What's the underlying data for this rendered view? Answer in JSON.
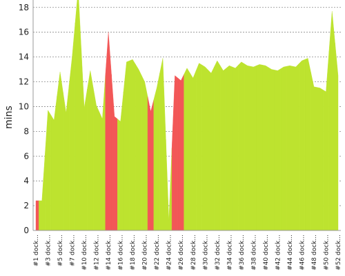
{
  "chart_data": {
    "type": "area",
    "ylabel": "mins",
    "categories": [
      "#1 dock...",
      null,
      "#3 dock...",
      null,
      "#5 dock...",
      null,
      "#7 dock...",
      null,
      "#10 dock...",
      null,
      "#12 dock...",
      null,
      "#14 dock...",
      null,
      "#16 dock...",
      null,
      "#18 dock...",
      null,
      "#20 dock...",
      null,
      "#22 dock...",
      null,
      "#24 dock...",
      null,
      "#26 dock...",
      null,
      "#28 dock...",
      null,
      "#30 dock...",
      null,
      "#32 dock...",
      null,
      "#34 dock...",
      null,
      "#36 dock...",
      null,
      "#38 dock...",
      null,
      "#40 dock...",
      null,
      "#42 dock...",
      null,
      "#44 dock...",
      null,
      "#46 dock...",
      null,
      "#48 dock...",
      null,
      "#50 dock...",
      null,
      "#52 dock..."
    ],
    "values": [
      2.4,
      2.4,
      9.7,
      8.9,
      12.8,
      9.5,
      14,
      19.5,
      9.9,
      12.9,
      10.1,
      9.0,
      16,
      9.2,
      8.8,
      13.6,
      13.8,
      13.0,
      12.0,
      9.6,
      11.5,
      13.9,
      0.8,
      12.5,
      12.1,
      13.1,
      12.3,
      13.5,
      13.2,
      12.7,
      13.7,
      12.9,
      13.3,
      13.1,
      13.6,
      13.3,
      13.2,
      13.4,
      13.3,
      13.0,
      12.9,
      13.2,
      13.3,
      13.2,
      13.7,
      13.9,
      11.6,
      11.5,
      11.2,
      17.7,
      12.5
    ],
    "colors": [
      "#f25757",
      "#bde32f",
      "#bde32f",
      "#bde32f",
      "#bde32f",
      "#bde32f",
      "#bde32f",
      "#bde32f",
      "#bde32f",
      "#bde32f",
      "#bde32f",
      "#bde32f",
      "#f25757",
      "#f25757",
      "#bde32f",
      "#bde32f",
      "#bde32f",
      "#bde32f",
      "#bde32f",
      "#f25757",
      "#bde32f",
      "#bde32f",
      "#bde32f",
      "#f25757",
      "#f25757",
      "#bde32f",
      "#bde32f",
      "#bde32f",
      "#bde32f",
      "#bde32f",
      "#bde32f",
      "#bde32f",
      "#bde32f",
      "#bde32f",
      "#bde32f",
      "#bde32f",
      "#bde32f",
      "#bde32f",
      "#bde32f",
      "#bde32f",
      "#bde32f",
      "#bde32f",
      "#bde32f",
      "#bde32f",
      "#bde32f",
      "#bde32f",
      "#bde32f",
      "#bde32f",
      "#bde32f",
      "#bde32f",
      "#bde32f"
    ],
    "ylim": [
      0,
      18.6
    ],
    "yticks": [
      0,
      2,
      4,
      6,
      8,
      10,
      12,
      14,
      16,
      18
    ],
    "grid": true
  }
}
